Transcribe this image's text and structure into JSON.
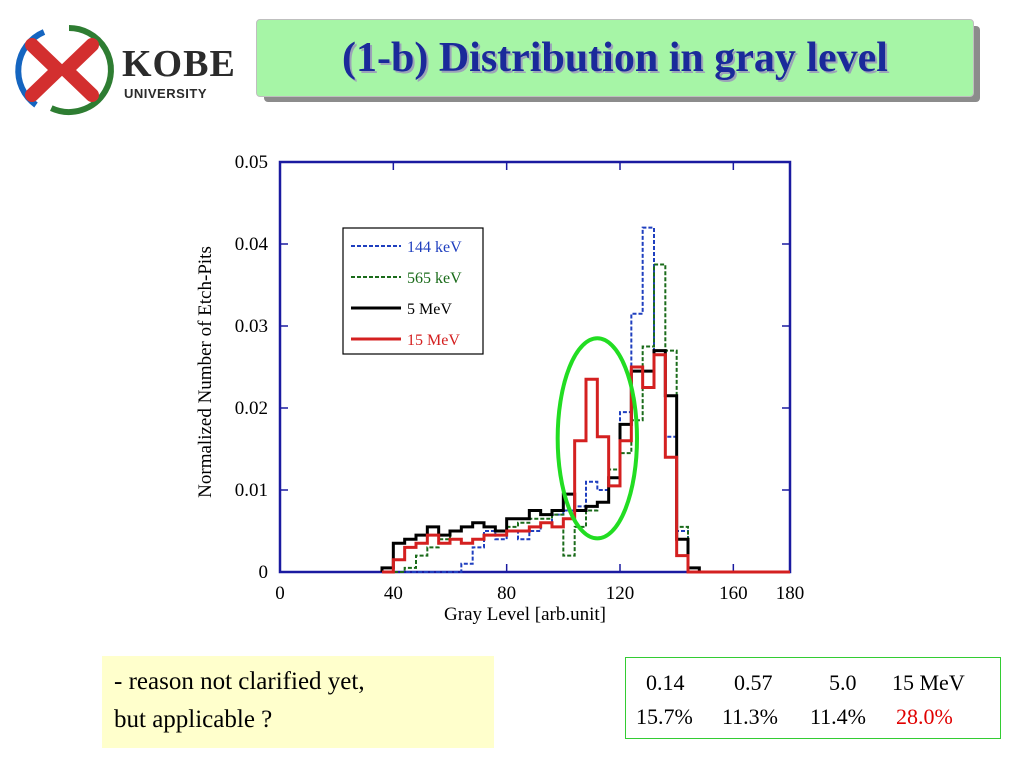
{
  "header": {
    "logo_main": "KOBE",
    "logo_sub": "UNIVERSITY",
    "title": "(1-b) Distribution in gray level"
  },
  "chart_data": {
    "type": "line",
    "xlabel": "Gray Level [arb.unit]",
    "ylabel": "Normalized Number of Etch-Pits",
    "xlim": [
      0,
      180
    ],
    "ylim": [
      0,
      0.05
    ],
    "xticks": [
      0,
      40,
      80,
      120,
      160,
      180
    ],
    "yticks": [
      0,
      0.01,
      0.02,
      0.03,
      0.04,
      0.05
    ],
    "ytick_labels": [
      "0",
      "0.01",
      "0.02",
      "0.03",
      "0.04",
      "0.05"
    ],
    "legend_position": "upper-left",
    "bin_edges": [
      36,
      40,
      44,
      48,
      52,
      56,
      60,
      64,
      68,
      72,
      76,
      80,
      84,
      88,
      92,
      96,
      100,
      104,
      108,
      112,
      116,
      120,
      124,
      128,
      132,
      136,
      140,
      144,
      148,
      152,
      156,
      160,
      164,
      168,
      172,
      176,
      180
    ],
    "series": [
      {
        "name": "144 keV",
        "color": "#1f3fbf",
        "dash": "dotted",
        "values": [
          0,
          0,
          0,
          0,
          0,
          0,
          0,
          0.001,
          0.003,
          0.005,
          0.004,
          0.005,
          0.004,
          0.005,
          0.006,
          0.007,
          0.0075,
          0.008,
          0.011,
          0.01,
          0.0105,
          0.0195,
          0.0315,
          0.042,
          0.027,
          0.0165,
          0.005,
          0,
          0,
          0,
          0,
          0,
          0,
          0,
          0,
          0
        ]
      },
      {
        "name": "565 keV",
        "color": "#1a6b1a",
        "dash": "dotted",
        "values": [
          0,
          0,
          0.0005,
          0.002,
          0.003,
          0.004,
          0.005,
          0.0055,
          0.006,
          0.0055,
          0.005,
          0.0055,
          0.006,
          0.0065,
          0.0065,
          0.007,
          0.002,
          0.0055,
          0.0075,
          0.0085,
          0.0125,
          0.0145,
          0.0185,
          0.0275,
          0.0375,
          0.027,
          0.0055,
          0.0005,
          0,
          0,
          0,
          0,
          0,
          0,
          0,
          0
        ]
      },
      {
        "name": "5 MeV",
        "color": "#000000",
        "dash": "solid",
        "values": [
          0.0005,
          0.0035,
          0.004,
          0.0045,
          0.0055,
          0.0045,
          0.005,
          0.0055,
          0.006,
          0.0055,
          0.005,
          0.0065,
          0.0065,
          0.0075,
          0.007,
          0.0075,
          0.0095,
          0.0075,
          0.008,
          0.0085,
          0.0115,
          0.018,
          0.0245,
          0.0245,
          0.027,
          0.0215,
          0.004,
          0.0005,
          0,
          0,
          0,
          0,
          0,
          0,
          0,
          0
        ]
      },
      {
        "name": "15 MeV",
        "color": "#d42020",
        "dash": "solid",
        "values": [
          0,
          0.0015,
          0.003,
          0.0035,
          0.0045,
          0.0035,
          0.004,
          0.0035,
          0.004,
          0.0045,
          0.0045,
          0.005,
          0.005,
          0.0055,
          0.006,
          0.0055,
          0.0065,
          0.016,
          0.0235,
          0.0165,
          0.0105,
          0.016,
          0.025,
          0.0225,
          0.0265,
          0.014,
          0.002,
          0,
          0,
          0,
          0,
          0,
          0,
          0,
          0,
          0
        ]
      }
    ],
    "annotation": {
      "shape": "ellipse",
      "color": "#22dd22",
      "center_x": 112,
      "center_y": 0.0163,
      "radius_x": 14,
      "radius_y": 0.0122
    }
  },
  "note": {
    "line1": "- reason not clarified yet,",
    "line2": "but applicable ?"
  },
  "table": {
    "header": [
      "0.14",
      "0.57",
      "5.0",
      "15 MeV"
    ],
    "values": [
      "15.7%",
      "11.3%",
      "11.4%",
      "28.0%"
    ],
    "highlight_color": "#e00000"
  }
}
